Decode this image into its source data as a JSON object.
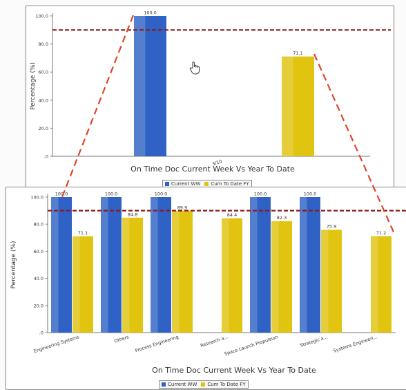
{
  "chart_data": [
    {
      "type": "bar",
      "categories": [
        "3/10"
      ],
      "series": [
        {
          "name": "Current WW",
          "values": [
            100.0
          ]
        },
        {
          "name": "Cum To Date FY",
          "values": [
            71.1
          ]
        }
      ],
      "xlabel": "On Time Doc Current Week Vs Year To Date",
      "ylabel": "Percentage (%)",
      "ylim": [
        0,
        100
      ],
      "yticks": [
        "100.0",
        "80.0",
        "60.0",
        "40.0",
        "20.0",
        ".0"
      ],
      "data_labels": [
        [
          "100.0"
        ],
        [
          "71.1"
        ]
      ],
      "target_line": 90,
      "legend_position": "bottom"
    },
    {
      "type": "bar",
      "categories": [
        "Engineering Systems",
        "Others",
        "Process Engineering",
        "Research a...",
        "Space Launch Propulsion",
        "Strategic a...",
        "Systems Engineeri..."
      ],
      "series": [
        {
          "name": "Current WW",
          "values": [
            100.0,
            100.0,
            100.0,
            null,
            100.0,
            100.0,
            null
          ]
        },
        {
          "name": "Cum To Date FY",
          "values": [
            71.1,
            84.8,
            89.9,
            84.4,
            82.3,
            75.9,
            71.2
          ]
        }
      ],
      "xlabel": "On Time Doc Current Week Vs Year To Date",
      "ylabel": "Percentage (%)",
      "ylim": [
        0,
        100
      ],
      "yticks": [
        "100.0",
        "80.0",
        "60.0",
        "40.0",
        "20.0",
        ".0"
      ],
      "data_labels": [
        [
          "100.0",
          "100.0",
          "100.0",
          "",
          "100.0",
          "100.0",
          ""
        ],
        [
          "71.1",
          "84.8",
          "89.9",
          "84.4",
          "82.3",
          "75.9",
          "71.2"
        ]
      ],
      "target_line": 90,
      "legend_position": "bottom"
    }
  ],
  "colors": {
    "current": "#2f62c4",
    "cum": "#e1c40f",
    "target": "#8b1a1a",
    "zoom": "#e0442a"
  },
  "cursor_icon": "hand-pointer-icon"
}
